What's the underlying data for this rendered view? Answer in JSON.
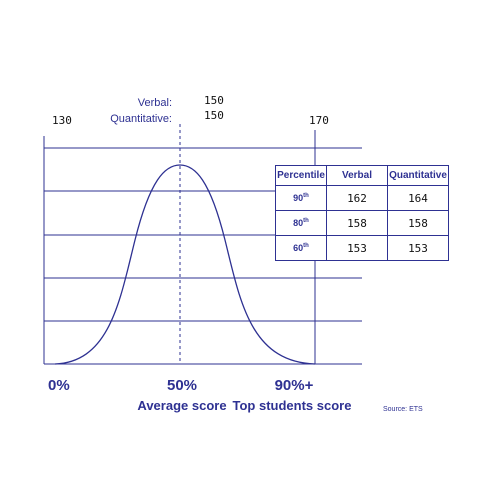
{
  "score_labels": {
    "verbal_label": "Verbal:",
    "verbal_score": "150",
    "quant_label": "Quantitative:",
    "quant_score": "150",
    "low": "130",
    "high": "170"
  },
  "axis_labels": {
    "left": "0%",
    "middle": "50%",
    "middle_caption": "Average score",
    "right": "90%+",
    "right_caption": "Top students score"
  },
  "source": "Source: ETS",
  "table": {
    "headers": [
      "Percentile",
      "Verbal",
      "Quantitative"
    ],
    "rows": [
      [
        {
          "number": "90",
          "suffix": "th"
        },
        "162",
        "164"
      ],
      [
        {
          "number": "80",
          "suffix": "th"
        },
        "158",
        "158"
      ],
      [
        {
          "number": "60",
          "suffix": "th"
        },
        "153",
        "153"
      ]
    ]
  }
}
